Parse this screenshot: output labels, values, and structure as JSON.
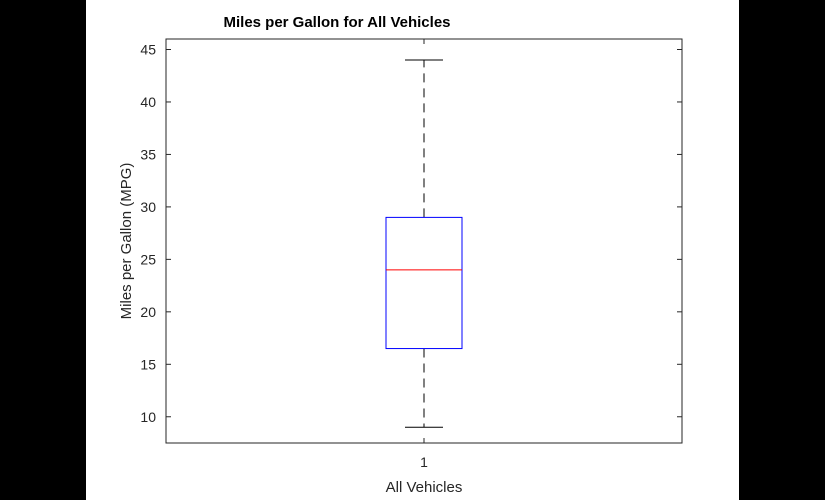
{
  "chart_data": {
    "type": "boxplot",
    "title": "Miles per Gallon for All Vehicles",
    "xlabel": "All Vehicles",
    "ylabel": "Miles per Gallon (MPG)",
    "categories": [
      "1"
    ],
    "ylim": [
      7.5,
      46
    ],
    "yticks": [
      10,
      15,
      20,
      25,
      30,
      35,
      40,
      45
    ],
    "ytick_labels": [
      "10",
      "15",
      "20",
      "25",
      "30",
      "35",
      "40",
      "45"
    ],
    "grid": false,
    "boxes": [
      {
        "category": "1",
        "whisker_low": 9,
        "q1": 16.5,
        "median": 24,
        "q3": 29,
        "whisker_high": 44
      }
    ],
    "colors": {
      "box": "#0000ff",
      "median": "#ff0000",
      "whisker": "#000000",
      "axes": "#262626"
    }
  }
}
